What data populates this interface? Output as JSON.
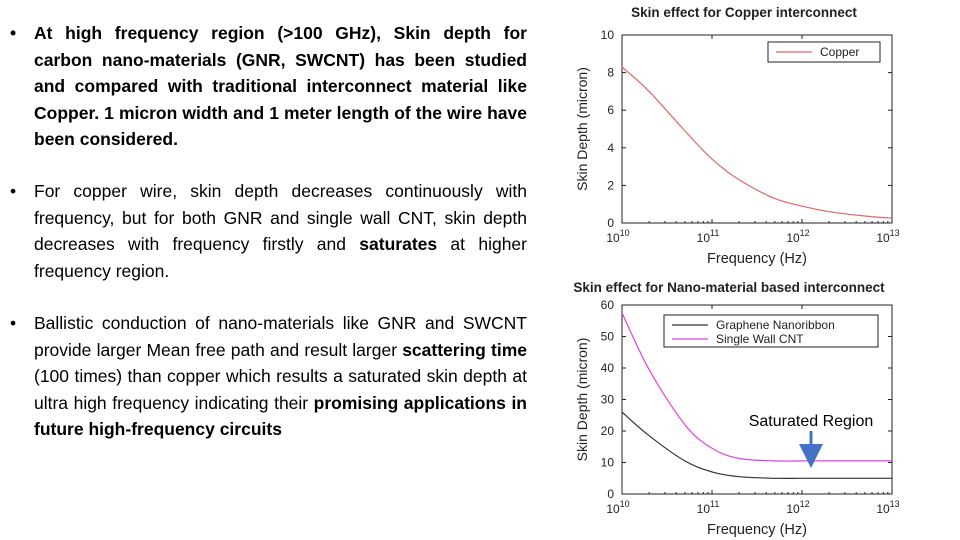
{
  "bullets": [
    {
      "text": "At high frequency region (>100 GHz), Skin depth for carbon nano-materials (GNR, SWCNT) has been studied and compared with traditional interconnect material like Copper. 1 micron width and 1 meter length of the wire have been considered."
    },
    {
      "pre": "For copper wire, skin depth decreases continuously with frequency, but for both GNR and single wall CNT, skin depth decreases with frequency firstly and ",
      "bold": "saturates",
      "post": " at higher frequency region."
    },
    {
      "pre": "Ballistic conduction of nano-materials like GNR and SWCNT provide larger Mean free path and result larger ",
      "bold": "scattering time",
      "mid": " (100 times) than copper which results a saturated skin depth at ultra high frequency indicating their ",
      "bold2": "promising applications in future high-frequency circuits",
      "post": ""
    }
  ],
  "chart_data": [
    {
      "type": "line",
      "title": "Skin effect for Copper interconnect",
      "xlabel": "Frequency (Hz)",
      "ylabel": "Skin Depth (micron)",
      "xscale": "log",
      "xlim": [
        10000000000.0,
        10000000000000.0
      ],
      "ylim": [
        0,
        10
      ],
      "yticks": [
        0,
        2,
        4,
        6,
        8,
        10
      ],
      "xticks_exp": [
        10,
        11,
        12,
        13
      ],
      "legend_position": "top-right",
      "series": [
        {
          "name": "Copper",
          "color": "#e06666",
          "x": [
            10000000000.0,
            20000000000.0,
            50000000000.0,
            100000000000.0,
            200000000000.0,
            500000000000.0,
            1000000000000.0,
            2000000000000.0,
            5000000000000.0,
            10000000000000.0
          ],
          "y": [
            8.3,
            7.0,
            4.9,
            3.4,
            2.3,
            1.3,
            0.9,
            0.6,
            0.37,
            0.26
          ]
        }
      ]
    },
    {
      "type": "line",
      "title": "Skin effect for Nano-material based interconnect",
      "xlabel": "Frequency (Hz)",
      "ylabel": "Skin Depth (micron)",
      "xscale": "log",
      "xlim": [
        10000000000.0,
        10000000000000.0
      ],
      "ylim": [
        0,
        60
      ],
      "yticks": [
        0,
        10,
        20,
        30,
        40,
        50,
        60
      ],
      "xticks_exp": [
        10,
        11,
        12,
        13
      ],
      "legend_position": "top-right",
      "annotation": "Saturated Region",
      "series": [
        {
          "name": "Graphene Nanoribbon",
          "color": "#333333",
          "x": [
            10000000000.0,
            20000000000.0,
            50000000000.0,
            100000000000.0,
            200000000000.0,
            500000000000.0,
            1000000000000.0,
            2000000000000.0,
            5000000000000.0,
            10000000000000.0
          ],
          "y": [
            26,
            18.5,
            10.5,
            7.0,
            5.5,
            5.0,
            5.0,
            5.0,
            5.0,
            5.0
          ]
        },
        {
          "name": "Single Wall CNT",
          "color": "#e040e0",
          "x": [
            10000000000.0,
            20000000000.0,
            50000000000.0,
            100000000000.0,
            200000000000.0,
            500000000000.0,
            1000000000000.0,
            2000000000000.0,
            5000000000000.0,
            10000000000000.0
          ],
          "y": [
            57.5,
            39.5,
            22,
            14.5,
            11.3,
            10.5,
            10.5,
            10.5,
            10.5,
            10.5
          ]
        }
      ]
    }
  ]
}
